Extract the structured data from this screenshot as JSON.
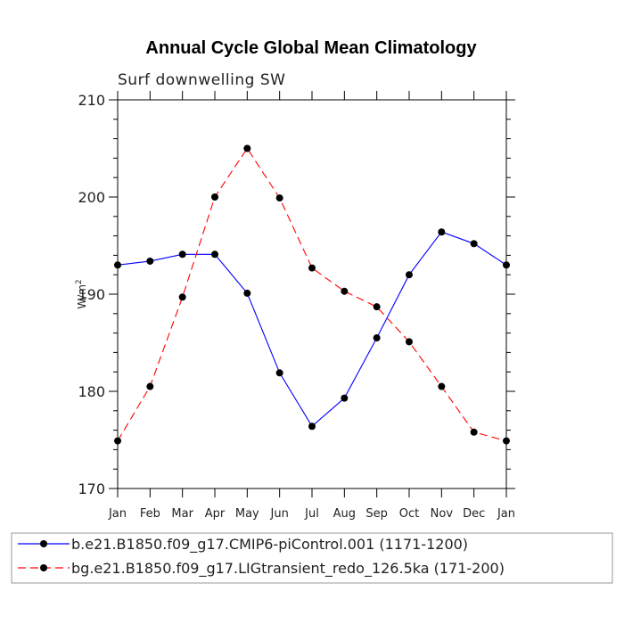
{
  "chart_data": {
    "type": "line",
    "title": "Annual Cycle Global Mean Climatology",
    "subtitle": "Surf downwelling SW",
    "ylabel": "W/m",
    "ylabel_exponent": "2",
    "xlabel": "",
    "ylim": [
      170,
      210
    ],
    "yticks": [
      170,
      180,
      190,
      200,
      210
    ],
    "yticks_minor_step": 2,
    "categories": [
      "Jan",
      "Feb",
      "Mar",
      "Apr",
      "May",
      "Jun",
      "Jul",
      "Aug",
      "Sep",
      "Oct",
      "Nov",
      "Dec",
      "Jan"
    ],
    "series": [
      {
        "name": "b.e21.B1850.f09_g17.CMIP6-piControl.001 (1171-1200)",
        "color": "#0000ff",
        "dash": "solid",
        "values": [
          193.0,
          193.4,
          194.1,
          194.1,
          190.1,
          181.9,
          176.4,
          179.3,
          185.5,
          192.0,
          196.4,
          195.2,
          193.0
        ]
      },
      {
        "name": "bg.e21.B1850.f09_g17.LIGtransient_redo_126.5ka (171-200)",
        "color": "#ff0000",
        "dash": "dashed",
        "values": [
          174.9,
          180.5,
          189.7,
          200.0,
          205.0,
          199.9,
          192.7,
          190.3,
          188.7,
          185.1,
          180.5,
          175.8,
          174.9
        ]
      }
    ],
    "marker_color": "#000000",
    "legend_position": "bottom"
  }
}
